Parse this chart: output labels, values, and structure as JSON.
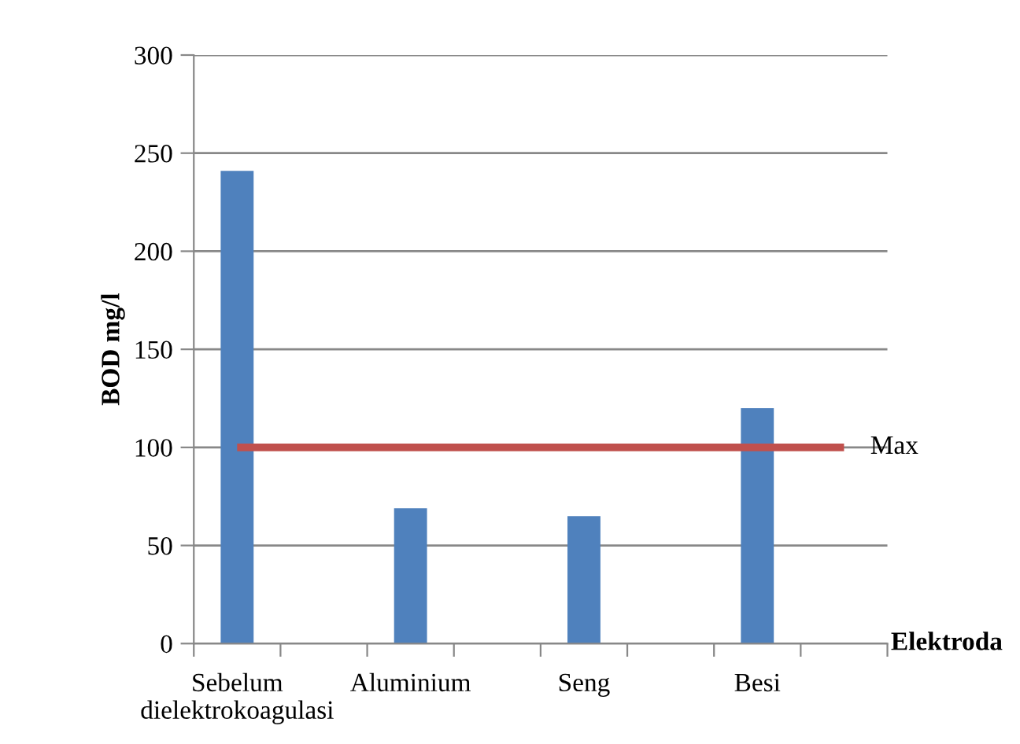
{
  "chart_data": {
    "type": "bar",
    "ylabel": "BOD mg/l",
    "xlabel": "Elektroda",
    "categories": [
      "Sebelum dielektrokoagulasi",
      null,
      "Aluminium",
      null,
      "Seng",
      null,
      "Besi",
      null
    ],
    "series": [
      {
        "color": "#4f81bd",
        "values": [
          241,
          null,
          69,
          null,
          65,
          null,
          120,
          null
        ]
      },
      {
        "type": "line",
        "name": "Max",
        "color": "#c0504d",
        "values": [
          100,
          100,
          100,
          100,
          100,
          100,
          100,
          100
        ]
      }
    ],
    "ylim": [
      0,
      300
    ],
    "yticks": [
      0,
      50,
      100,
      150,
      200,
      250,
      300
    ],
    "grid": "y",
    "legend": false
  }
}
